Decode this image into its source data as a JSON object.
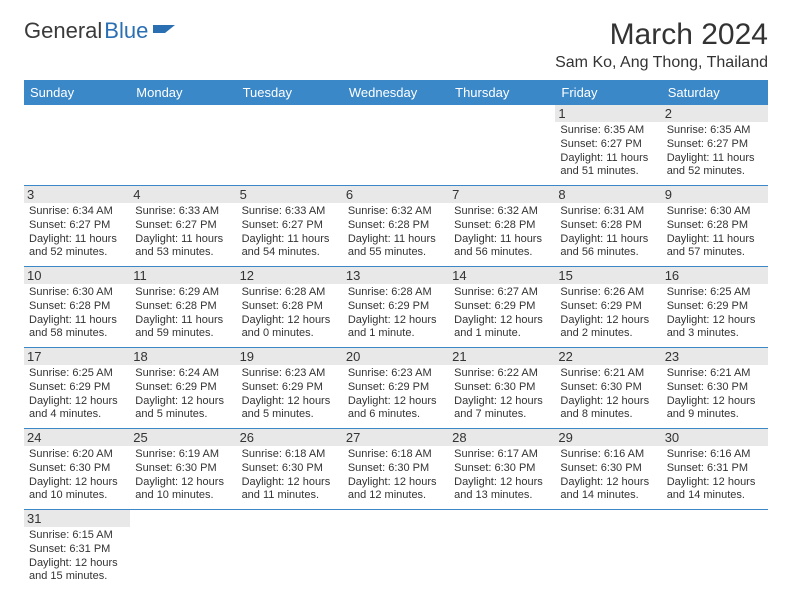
{
  "logo": {
    "text1": "General",
    "text2": "Blue"
  },
  "title": "March 2024",
  "location": "Sam Ko, Ang Thong, Thailand",
  "colors": {
    "header_bg": "#3a88c8",
    "header_fg": "#ffffff",
    "grid_line": "#3a88c8",
    "daynum_bg": "#e8e8e8",
    "logo_blue": "#2b6fb3",
    "text": "#333333"
  },
  "weekdays": [
    "Sunday",
    "Monday",
    "Tuesday",
    "Wednesday",
    "Thursday",
    "Friday",
    "Saturday"
  ],
  "weeks": [
    [
      null,
      null,
      null,
      null,
      null,
      {
        "n": "1",
        "sr": "6:35 AM",
        "ss": "6:27 PM",
        "dl": "11 hours and 51 minutes."
      },
      {
        "n": "2",
        "sr": "6:35 AM",
        "ss": "6:27 PM",
        "dl": "11 hours and 52 minutes."
      }
    ],
    [
      {
        "n": "3",
        "sr": "6:34 AM",
        "ss": "6:27 PM",
        "dl": "11 hours and 52 minutes."
      },
      {
        "n": "4",
        "sr": "6:33 AM",
        "ss": "6:27 PM",
        "dl": "11 hours and 53 minutes."
      },
      {
        "n": "5",
        "sr": "6:33 AM",
        "ss": "6:27 PM",
        "dl": "11 hours and 54 minutes."
      },
      {
        "n": "6",
        "sr": "6:32 AM",
        "ss": "6:28 PM",
        "dl": "11 hours and 55 minutes."
      },
      {
        "n": "7",
        "sr": "6:32 AM",
        "ss": "6:28 PM",
        "dl": "11 hours and 56 minutes."
      },
      {
        "n": "8",
        "sr": "6:31 AM",
        "ss": "6:28 PM",
        "dl": "11 hours and 56 minutes."
      },
      {
        "n": "9",
        "sr": "6:30 AM",
        "ss": "6:28 PM",
        "dl": "11 hours and 57 minutes."
      }
    ],
    [
      {
        "n": "10",
        "sr": "6:30 AM",
        "ss": "6:28 PM",
        "dl": "11 hours and 58 minutes."
      },
      {
        "n": "11",
        "sr": "6:29 AM",
        "ss": "6:28 PM",
        "dl": "11 hours and 59 minutes."
      },
      {
        "n": "12",
        "sr": "6:28 AM",
        "ss": "6:28 PM",
        "dl": "12 hours and 0 minutes."
      },
      {
        "n": "13",
        "sr": "6:28 AM",
        "ss": "6:29 PM",
        "dl": "12 hours and 1 minute."
      },
      {
        "n": "14",
        "sr": "6:27 AM",
        "ss": "6:29 PM",
        "dl": "12 hours and 1 minute."
      },
      {
        "n": "15",
        "sr": "6:26 AM",
        "ss": "6:29 PM",
        "dl": "12 hours and 2 minutes."
      },
      {
        "n": "16",
        "sr": "6:25 AM",
        "ss": "6:29 PM",
        "dl": "12 hours and 3 minutes."
      }
    ],
    [
      {
        "n": "17",
        "sr": "6:25 AM",
        "ss": "6:29 PM",
        "dl": "12 hours and 4 minutes."
      },
      {
        "n": "18",
        "sr": "6:24 AM",
        "ss": "6:29 PM",
        "dl": "12 hours and 5 minutes."
      },
      {
        "n": "19",
        "sr": "6:23 AM",
        "ss": "6:29 PM",
        "dl": "12 hours and 5 minutes."
      },
      {
        "n": "20",
        "sr": "6:23 AM",
        "ss": "6:29 PM",
        "dl": "12 hours and 6 minutes."
      },
      {
        "n": "21",
        "sr": "6:22 AM",
        "ss": "6:30 PM",
        "dl": "12 hours and 7 minutes."
      },
      {
        "n": "22",
        "sr": "6:21 AM",
        "ss": "6:30 PM",
        "dl": "12 hours and 8 minutes."
      },
      {
        "n": "23",
        "sr": "6:21 AM",
        "ss": "6:30 PM",
        "dl": "12 hours and 9 minutes."
      }
    ],
    [
      {
        "n": "24",
        "sr": "6:20 AM",
        "ss": "6:30 PM",
        "dl": "12 hours and 10 minutes."
      },
      {
        "n": "25",
        "sr": "6:19 AM",
        "ss": "6:30 PM",
        "dl": "12 hours and 10 minutes."
      },
      {
        "n": "26",
        "sr": "6:18 AM",
        "ss": "6:30 PM",
        "dl": "12 hours and 11 minutes."
      },
      {
        "n": "27",
        "sr": "6:18 AM",
        "ss": "6:30 PM",
        "dl": "12 hours and 12 minutes."
      },
      {
        "n": "28",
        "sr": "6:17 AM",
        "ss": "6:30 PM",
        "dl": "12 hours and 13 minutes."
      },
      {
        "n": "29",
        "sr": "6:16 AM",
        "ss": "6:30 PM",
        "dl": "12 hours and 14 minutes."
      },
      {
        "n": "30",
        "sr": "6:16 AM",
        "ss": "6:31 PM",
        "dl": "12 hours and 14 minutes."
      }
    ],
    [
      {
        "n": "31",
        "sr": "6:15 AM",
        "ss": "6:31 PM",
        "dl": "12 hours and 15 minutes."
      },
      null,
      null,
      null,
      null,
      null,
      null
    ]
  ],
  "labels": {
    "sunrise": "Sunrise:",
    "sunset": "Sunset:",
    "daylight": "Daylight:"
  }
}
